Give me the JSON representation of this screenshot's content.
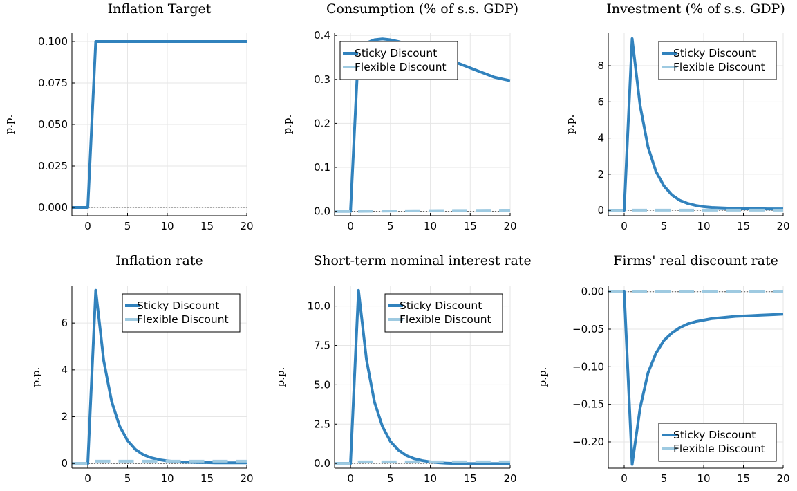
{
  "colors": {
    "sticky": "#3182bd",
    "flexible": "#9ecae1",
    "grid": "#e6e6e6",
    "zero": "#555555"
  },
  "chart_data": [
    {
      "type": "line",
      "title": "Inflation Target",
      "ylabel": "p.p.",
      "xlim": [
        -2,
        20
      ],
      "ylim": [
        -0.005,
        0.105
      ],
      "xticks": [
        0,
        5,
        10,
        15,
        20
      ],
      "xtick_labels": [
        "0",
        "5",
        "10",
        "15",
        "20"
      ],
      "yticks": [
        0,
        0.025,
        0.05,
        0.075,
        0.1
      ],
      "ytick_labels": [
        "0.000",
        "0.025",
        "0.050",
        "0.075",
        "0.100"
      ],
      "legend": null,
      "series": [
        {
          "key": "sticky",
          "style": "solid",
          "x": [
            -2,
            -1,
            0,
            1,
            2,
            3,
            4,
            5,
            6,
            7,
            8,
            9,
            10,
            11,
            12,
            13,
            14,
            15,
            16,
            17,
            18,
            19,
            20
          ],
          "y": [
            0,
            0,
            0,
            0.1,
            0.1,
            0.1,
            0.1,
            0.1,
            0.1,
            0.1,
            0.1,
            0.1,
            0.1,
            0.1,
            0.1,
            0.1,
            0.1,
            0.1,
            0.1,
            0.1,
            0.1,
            0.1,
            0.1
          ]
        }
      ]
    },
    {
      "type": "line",
      "title": "Consumption (% of s.s. GDP)",
      "ylabel": "p.p.",
      "xlim": [
        -2,
        20
      ],
      "ylim": [
        -0.01,
        0.405
      ],
      "xticks": [
        0,
        5,
        10,
        15,
        20
      ],
      "xtick_labels": [
        "0",
        "5",
        "10",
        "15",
        "20"
      ],
      "yticks": [
        0,
        0.1,
        0.2,
        0.3,
        0.4
      ],
      "ytick_labels": [
        "0.0",
        "0.1",
        "0.2",
        "0.3",
        "0.4"
      ],
      "legend": "top-left",
      "series": [
        {
          "key": "sticky",
          "name": "Sticky Discount",
          "style": "solid",
          "x": [
            -2,
            -1,
            0,
            1,
            2,
            3,
            4,
            5,
            6,
            7,
            8,
            9,
            10,
            11,
            12,
            13,
            14,
            15,
            16,
            17,
            18,
            19,
            20
          ],
          "y": [
            0,
            0,
            0,
            0.37,
            0.383,
            0.39,
            0.392,
            0.39,
            0.386,
            0.381,
            0.375,
            0.368,
            0.361,
            0.354,
            0.347,
            0.34,
            0.333,
            0.326,
            0.319,
            0.312,
            0.305,
            0.301,
            0.297
          ]
        },
        {
          "key": "flexible",
          "name": "Flexible Discount",
          "style": "dashed",
          "x": [
            -2,
            -1,
            0,
            1,
            2,
            3,
            4,
            5,
            6,
            7,
            8,
            9,
            10,
            11,
            12,
            13,
            14,
            15,
            16,
            17,
            18,
            19,
            20
          ],
          "y": [
            0,
            0,
            0,
            0,
            0.0003,
            0.0005,
            0.0007,
            0.0009,
            0.001,
            0.0012,
            0.0013,
            0.0014,
            0.0016,
            0.0017,
            0.0018,
            0.0019,
            0.002,
            0.0021,
            0.0022,
            0.0023,
            0.0024,
            0.0025,
            0.0026
          ]
        }
      ]
    },
    {
      "type": "line",
      "title": "Investment (% of s.s. GDP)",
      "ylabel": "p.p.",
      "xlim": [
        -2,
        20
      ],
      "ylim": [
        -0.3,
        9.8
      ],
      "xticks": [
        0,
        5,
        10,
        15,
        20
      ],
      "xtick_labels": [
        "0",
        "5",
        "10",
        "15",
        "20"
      ],
      "yticks": [
        0,
        2,
        4,
        6,
        8
      ],
      "ytick_labels": [
        "0",
        "2",
        "4",
        "6",
        "8"
      ],
      "legend": "top-right",
      "series": [
        {
          "key": "sticky",
          "name": "Sticky Discount",
          "style": "solid",
          "x": [
            -2,
            -1,
            0,
            1,
            2,
            3,
            4,
            5,
            6,
            7,
            8,
            9,
            10,
            11,
            12,
            13,
            14,
            15,
            16,
            17,
            18,
            19,
            20
          ],
          "y": [
            0,
            0,
            0,
            9.5,
            5.8,
            3.5,
            2.15,
            1.35,
            0.85,
            0.55,
            0.38,
            0.27,
            0.2,
            0.16,
            0.14,
            0.12,
            0.11,
            0.1,
            0.09,
            0.09,
            0.08,
            0.08,
            0.08
          ]
        },
        {
          "key": "flexible",
          "name": "Flexible Discount",
          "style": "dashed",
          "x": [
            -2,
            -1,
            0,
            1,
            2,
            3,
            4,
            5,
            6,
            7,
            8,
            9,
            10,
            11,
            12,
            13,
            14,
            15,
            16,
            17,
            18,
            19,
            20
          ],
          "y": [
            0,
            0,
            0,
            0.01,
            0.01,
            0.01,
            0.01,
            0.01,
            0.01,
            0.01,
            0.01,
            0.01,
            0.01,
            0.01,
            0.01,
            0.01,
            0.01,
            0.01,
            0.01,
            0.01,
            0.01,
            0.01,
            0.01
          ]
        }
      ]
    },
    {
      "type": "line",
      "title": "Inflation rate",
      "ylabel": "p.p.",
      "xlim": [
        -2,
        20
      ],
      "ylim": [
        -0.2,
        7.6
      ],
      "xticks": [
        0,
        5,
        10,
        15,
        20
      ],
      "xtick_labels": [
        "0",
        "5",
        "10",
        "15",
        "20"
      ],
      "yticks": [
        0,
        2,
        4,
        6
      ],
      "ytick_labels": [
        "0",
        "2",
        "4",
        "6"
      ],
      "legend": "top-right",
      "series": [
        {
          "key": "sticky",
          "name": "Sticky Discount",
          "style": "solid",
          "x": [
            -2,
            -1,
            0,
            1,
            2,
            3,
            4,
            5,
            6,
            7,
            8,
            9,
            10,
            11,
            12,
            13,
            14,
            15,
            16,
            17,
            18,
            19,
            20
          ],
          "y": [
            0,
            0,
            0,
            7.4,
            4.4,
            2.65,
            1.6,
            0.98,
            0.6,
            0.37,
            0.24,
            0.16,
            0.11,
            0.08,
            0.06,
            0.05,
            0.04,
            0.04,
            0.03,
            0.03,
            0.03,
            0.03,
            0.03
          ]
        },
        {
          "key": "flexible",
          "name": "Flexible Discount",
          "style": "dashed",
          "x": [
            -2,
            -1,
            0,
            1,
            2,
            3,
            4,
            5,
            6,
            7,
            8,
            9,
            10,
            11,
            12,
            13,
            14,
            15,
            16,
            17,
            18,
            19,
            20
          ],
          "y": [
            0,
            0,
            0,
            0.1,
            0.1,
            0.1,
            0.1,
            0.1,
            0.1,
            0.1,
            0.1,
            0.1,
            0.1,
            0.1,
            0.1,
            0.1,
            0.1,
            0.1,
            0.1,
            0.1,
            0.1,
            0.1,
            0.1
          ]
        }
      ]
    },
    {
      "type": "line",
      "title": "Short-term nominal interest rate",
      "ylabel": "p.p.",
      "xlim": [
        -2,
        20
      ],
      "ylim": [
        -0.3,
        11.3
      ],
      "xticks": [
        0,
        5,
        10,
        15,
        20
      ],
      "xtick_labels": [
        "0",
        "5",
        "10",
        "15",
        "20"
      ],
      "yticks": [
        0,
        2.5,
        5,
        7.5,
        10
      ],
      "ytick_labels": [
        "0.0",
        "2.5",
        "5.0",
        "7.5",
        "10.0"
      ],
      "legend": "top-right",
      "series": [
        {
          "key": "sticky",
          "name": "Sticky Discount",
          "style": "solid",
          "x": [
            -2,
            -1,
            0,
            1,
            2,
            3,
            4,
            5,
            6,
            7,
            8,
            9,
            10,
            11,
            12,
            13,
            14,
            15,
            16,
            17,
            18,
            19,
            20
          ],
          "y": [
            0,
            0,
            0,
            11,
            6.6,
            3.9,
            2.35,
            1.4,
            0.85,
            0.5,
            0.3,
            0.18,
            0.1,
            0.05,
            0.02,
            0,
            -0.01,
            -0.01,
            -0.01,
            -0.01,
            -0.01,
            -0.01,
            -0.01
          ]
        },
        {
          "key": "flexible",
          "name": "Flexible Discount",
          "style": "dashed",
          "x": [
            -2,
            -1,
            0,
            1,
            2,
            3,
            4,
            5,
            6,
            7,
            8,
            9,
            10,
            11,
            12,
            13,
            14,
            15,
            16,
            17,
            18,
            19,
            20
          ],
          "y": [
            0,
            0,
            0,
            0.1,
            0.1,
            0.1,
            0.1,
            0.1,
            0.1,
            0.1,
            0.1,
            0.1,
            0.1,
            0.1,
            0.1,
            0.1,
            0.1,
            0.1,
            0.1,
            0.1,
            0.1,
            0.1,
            0.1
          ]
        }
      ]
    },
    {
      "type": "line",
      "title": "Firms' real discount rate",
      "ylabel": "p.p.",
      "xlim": [
        -2,
        20
      ],
      "ylim": [
        -0.235,
        0.008
      ],
      "xticks": [
        0,
        5,
        10,
        15,
        20
      ],
      "xtick_labels": [
        "0",
        "5",
        "10",
        "15",
        "20"
      ],
      "yticks": [
        0,
        -0.05,
        -0.1,
        -0.15,
        -0.2
      ],
      "ytick_labels": [
        "0.00",
        "−0.05",
        "−0.10",
        "−0.15",
        "−0.20"
      ],
      "legend": "bottom-right",
      "series": [
        {
          "key": "sticky",
          "name": "Sticky Discount",
          "style": "solid",
          "x": [
            -2,
            -1,
            0,
            1,
            2,
            3,
            4,
            5,
            6,
            7,
            8,
            9,
            10,
            11,
            12,
            13,
            14,
            15,
            16,
            17,
            18,
            19,
            20
          ],
          "y": [
            0,
            0,
            0,
            -0.23,
            -0.155,
            -0.108,
            -0.082,
            -0.065,
            -0.055,
            -0.048,
            -0.043,
            -0.04,
            -0.038,
            -0.036,
            -0.035,
            -0.034,
            -0.033,
            -0.0325,
            -0.032,
            -0.0315,
            -0.031,
            -0.0305,
            -0.03
          ]
        },
        {
          "key": "flexible",
          "name": "Flexible Discount",
          "style": "dashed",
          "x": [
            -2,
            -1,
            0,
            1,
            2,
            3,
            4,
            5,
            6,
            7,
            8,
            9,
            10,
            11,
            12,
            13,
            14,
            15,
            16,
            17,
            18,
            19,
            20
          ],
          "y": [
            0,
            0,
            0,
            0,
            0,
            0,
            0,
            0,
            0,
            0,
            0,
            0,
            0,
            0,
            0,
            0,
            0,
            0,
            0,
            0,
            0,
            0,
            0
          ]
        }
      ]
    }
  ]
}
